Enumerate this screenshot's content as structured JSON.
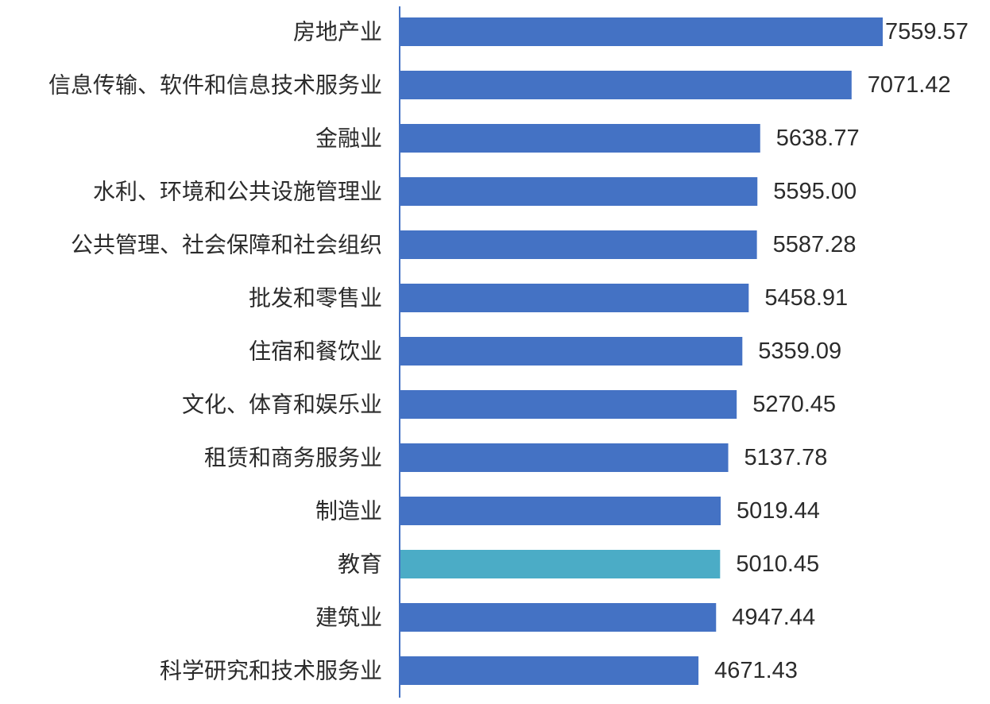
{
  "chart_data": {
    "type": "bar",
    "orientation": "horizontal",
    "categories": [
      "房地产业",
      "信息传输、软件和信息技术服务业",
      "金融业",
      "水利、环境和公共设施管理业",
      "公共管理、社会保障和社会组织",
      "批发和零售业",
      "住宿和餐饮业",
      "文化、体育和娱乐业",
      "租赁和商务服务业",
      "制造业",
      "教育",
      "建筑业",
      "科学研究和技术服务业"
    ],
    "values": [
      7559.57,
      7071.42,
      5638.77,
      5595.0,
      5587.28,
      5458.91,
      5359.09,
      5270.45,
      5137.78,
      5019.44,
      5010.45,
      4947.44,
      4671.43
    ],
    "value_labels": [
      "7559.57",
      "7071.42",
      "5638.77",
      "5595.00",
      "5587.28",
      "5458.91",
      "5359.09",
      "5270.45",
      "5137.78",
      "5019.44",
      "5010.45",
      "4947.44",
      "4671.43"
    ],
    "highlight_category": "教育",
    "colors": {
      "bar": "#4472C4",
      "highlight": "#4BACC6",
      "axis": "#4472C4",
      "text": "#2b2b2b"
    },
    "grid": false,
    "legend": "none",
    "x_axis_visible": false
  }
}
